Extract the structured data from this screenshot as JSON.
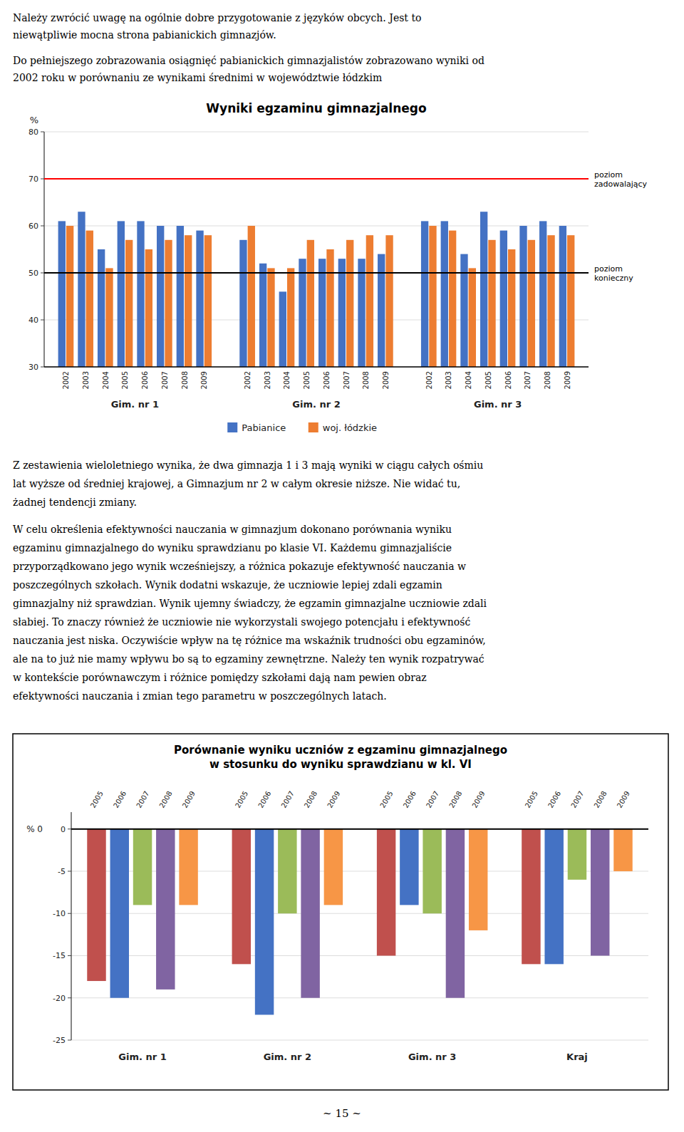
{
  "page_text": {
    "top": [
      [
        "Należy zwrócić uwagę na ogólnie dobre przygotowanie z języków obcych. Jest to",
        "niewątpliwie mocna strona pabianickich gimnazjów."
      ],
      [
        "Do pełniejszego zobrazowania osiągnięć pabianickich gimnazjalistów zobrazowano wyniki od",
        "2002 roku w porównaniu ze wynikami średnimi w województwie łódzkim"
      ]
    ],
    "middle": [
      [
        "Z zestawienia wieloletniego wynika, że dwa gimnazja 1 i 3 mają wyniki w ciągu całych ośmiu",
        "lat wyższe od średniej krajowej, a Gimnazjum nr 2 w całym okresie niższe. Nie widać tu,",
        "żadnej tendencji zmiany."
      ],
      [
        "W celu określenia efektywności nauczania w gimnazjum dokonano porównania wyniku",
        "egzaminu gimnazjalnego do wyniku sprawdzianu po klasie VI. Każdemu gimnazjaliście",
        "przyporządkowano jego wynik wcześniejszy, a różnica pokazuje efektywność nauczania w",
        "poszczególnych szkołach. Wynik dodatni wskazuje, że uczniowie lepiej zdali egzamin",
        "gimnazjalny niż sprawdzian. Wynik ujemny świadczy, że egzamin gimnazjalne uczniowie zdali",
        "słabiej. To znaczy również że uczniowie nie wykorzystali swojego potencjału i efektywność",
        "nauczania jest niska. Oczywiście wpływ na tę różnice ma wskaźnik trudności obu egzaminów,",
        "ale na to już nie mamy wpływu bo są to egzaminy zewnętrzne. Należy ten wynik rozpatrywać",
        "w kontekście porównawczym i różnice pomiędzy szkołami dają nam pewien obraz",
        "efektywności nauczania i zmian tego parametru w poszczególnych latach."
      ]
    ],
    "page_number": "~ 15 ~"
  },
  "chart_data": [
    {
      "type": "bar",
      "title": "Wyniki egzaminu gimnazjalnego",
      "ylabel": "%",
      "categories": [
        "2002",
        "2003",
        "2004",
        "2005",
        "2006",
        "2007",
        "2008",
        "2009",
        "2002",
        "2003",
        "2004",
        "2005",
        "2006",
        "2007",
        "2008",
        "2009",
        "2002",
        "2003",
        "2004",
        "2005",
        "2006",
        "2007",
        "2008",
        "2009"
      ],
      "category_groups": [
        "Gim. nr 1",
        "Gim. nr 2",
        "Gim. nr 3"
      ],
      "series": [
        {
          "name": "Pabianice",
          "color": "#4472C4",
          "values": [
            61,
            63,
            55,
            61,
            61,
            60,
            60,
            59,
            57,
            52,
            46,
            53,
            53,
            53,
            53,
            54,
            61,
            61,
            54,
            63,
            59,
            60,
            61,
            60
          ]
        },
        {
          "name": "woj. łódzkie",
          "color": "#ED7D31",
          "values": [
            60,
            59,
            51,
            57,
            55,
            57,
            58,
            58,
            60,
            51,
            51,
            57,
            55,
            57,
            58,
            58,
            60,
            59,
            51,
            57,
            55,
            57,
            58,
            58
          ]
        }
      ],
      "ylim": [
        30,
        80
      ],
      "yticks": [
        30,
        40,
        50,
        60,
        70,
        80
      ],
      "grid": true,
      "legend": "bottom",
      "annotations": [
        {
          "type": "hline",
          "value": 70,
          "label": "poziom\nzadowalający",
          "color": "#FF0000"
        },
        {
          "type": "hline",
          "value": 50,
          "label": "poziom\nkonieczny",
          "color": "#000000"
        }
      ]
    },
    {
      "type": "bar",
      "title": "Porównanie wyniku uczniów z egzaminu gimnazjalnego",
      "subtitle": "w stosunku do wyniku sprawdzianu w kl. VI",
      "categories": [
        "2005",
        "2006",
        "2007",
        "2008",
        "2009",
        "2005",
        "2006",
        "2007",
        "2008",
        "2009",
        "2005",
        "2006",
        "2007",
        "2008",
        "2009",
        "2005",
        "2006",
        "2007",
        "2008",
        "2009"
      ],
      "category_groups": [
        "Gim. nr 1",
        "Gim. nr 2",
        "Gim. nr 3",
        "Kraj"
      ],
      "values": [
        -18,
        -20,
        -9,
        -19,
        -9,
        -16,
        -22,
        -10,
        -20,
        -9,
        -15,
        -9,
        -10,
        -20,
        -12,
        -16,
        -16,
        -6,
        -15,
        -5
      ],
      "colors": [
        "#C0504D",
        "#4472C4",
        "#9BBB59",
        "#8064A2",
        "#F79646",
        "#C0504D",
        "#4472C4",
        "#9BBB59",
        "#8064A2",
        "#F79646",
        "#C0504D",
        "#4472C4",
        "#9BBB59",
        "#8064A2",
        "#F79646",
        "#C0504D",
        "#4472C4",
        "#9BBB59",
        "#8064A2",
        "#F79646"
      ],
      "ylim": [
        -25,
        2
      ],
      "yticks": [
        -25,
        -20,
        -15,
        -10,
        -5,
        0
      ],
      "grid": true,
      "annotations": [
        {
          "type": "text",
          "text": "% 0",
          "y": 0
        }
      ]
    }
  ]
}
